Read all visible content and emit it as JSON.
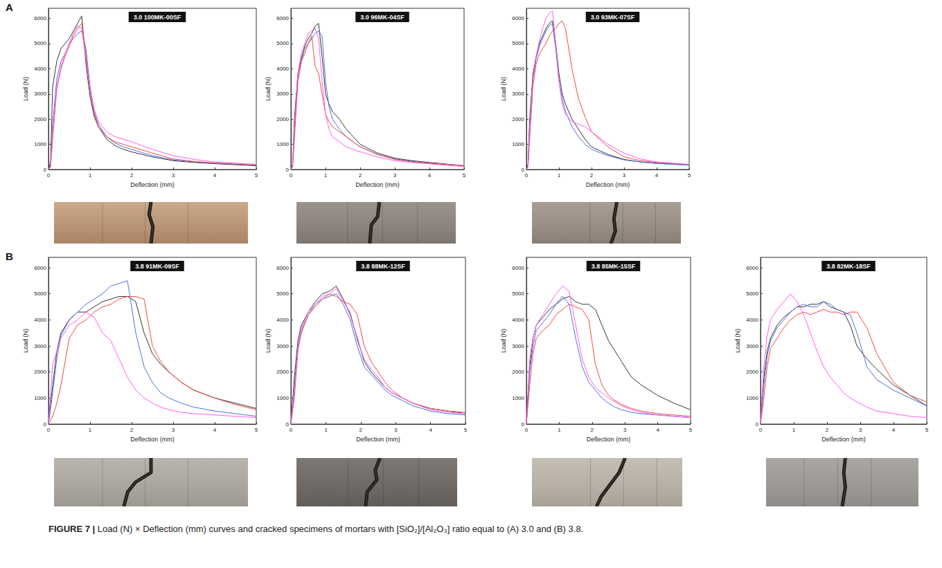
{
  "caption": {
    "label": "FIGURE 7 |",
    "text": "Load (N) × Deflection (mm) curves and cracked specimens of mortars with [SiO₂]/[Al₂O₃] ratio equal to (A) 3.0 and (B) 3.8."
  },
  "chart_data": [
    {
      "type": "line",
      "panel": "A",
      "title": "3.0 100MK-00SF",
      "x_label": "Deflection (mm)",
      "y_label": "Load (N)",
      "xlim": [
        0,
        5
      ],
      "xticks": [
        0,
        1,
        2,
        3,
        4,
        5
      ],
      "ylim": [
        0,
        6400
      ],
      "yticks": [
        0,
        1000,
        2000,
        3000,
        4000,
        5000,
        6000
      ],
      "grid": false,
      "x": [
        0,
        0.05,
        0.1,
        0.2,
        0.3,
        0.4,
        0.5,
        0.6,
        0.7,
        0.8,
        0.9,
        1.0,
        1.1,
        1.2,
        1.4,
        1.6,
        1.8,
        2.0,
        2.5,
        3.0,
        3.5,
        4.0,
        5.0
      ],
      "series": [
        {
          "color": "#333333",
          "values": [
            0,
            300,
            3300,
            4300,
            4800,
            5000,
            5200,
            5500,
            5800,
            6100,
            4200,
            2900,
            2100,
            1700,
            1200,
            950,
            800,
            700,
            500,
            350,
            280,
            230,
            150
          ]
        },
        {
          "color": "#4d6fe0",
          "values": [
            0,
            150,
            1800,
            3600,
            4300,
            4600,
            5000,
            5200,
            5400,
            5500,
            4800,
            3300,
            2300,
            1800,
            1300,
            1050,
            900,
            800,
            550,
            380,
            300,
            250,
            170
          ]
        },
        {
          "color": "#ef4a43",
          "values": [
            0,
            100,
            1200,
            3200,
            4000,
            4500,
            4900,
            5300,
            5600,
            5800,
            4600,
            3100,
            2200,
            1700,
            1300,
            1100,
            1000,
            900,
            650,
            420,
            320,
            260,
            180
          ]
        },
        {
          "color": "#ff5cf0",
          "values": [
            0,
            100,
            1500,
            3300,
            4100,
            4600,
            5000,
            5400,
            5700,
            5600,
            4400,
            3200,
            2400,
            1900,
            1500,
            1300,
            1200,
            1100,
            800,
            550,
            400,
            300,
            200
          ]
        }
      ]
    },
    {
      "type": "line",
      "panel": "A",
      "title": "3.0 96MK-04SF",
      "x_label": "Deflection (mm)",
      "y_label": "Load (N)",
      "xlim": [
        0,
        5
      ],
      "xticks": [
        0,
        1,
        2,
        3,
        4,
        5
      ],
      "ylim": [
        0,
        6400
      ],
      "yticks": [
        0,
        1000,
        2000,
        3000,
        4000,
        5000,
        6000
      ],
      "grid": false,
      "x": [
        0,
        0.05,
        0.1,
        0.2,
        0.3,
        0.4,
        0.5,
        0.6,
        0.7,
        0.8,
        0.9,
        1.0,
        1.1,
        1.2,
        1.4,
        1.6,
        1.8,
        2.0,
        2.5,
        3.0,
        3.5,
        4.0,
        5.0
      ],
      "series": [
        {
          "color": "#333333",
          "values": [
            0,
            200,
            2000,
            3800,
            4400,
            4900,
            5200,
            5400,
            5700,
            5800,
            4500,
            3000,
            2600,
            2300,
            2000,
            1600,
            1300,
            1000,
            650,
            450,
            350,
            280,
            150
          ]
        },
        {
          "color": "#4d6fe0",
          "values": [
            0,
            150,
            1500,
            3500,
            4300,
            4800,
            5000,
            5200,
            5400,
            5500,
            5300,
            3500,
            2500,
            2000,
            1600,
            1300,
            1100,
            900,
            600,
            420,
            320,
            250,
            150
          ]
        },
        {
          "color": "#ef4a43",
          "values": [
            0,
            100,
            1200,
            3500,
            4300,
            4600,
            5000,
            5300,
            4100,
            3800,
            3000,
            2200,
            1900,
            1700,
            1500,
            1300,
            1100,
            900,
            600,
            400,
            300,
            250,
            150
          ]
        },
        {
          "color": "#ff5cf0",
          "values": [
            0,
            150,
            1700,
            3800,
            4600,
            5000,
            5400,
            5500,
            5600,
            5200,
            3500,
            2200,
            1600,
            1300,
            1100,
            900,
            800,
            700,
            500,
            350,
            280,
            220,
            120
          ]
        }
      ]
    },
    {
      "type": "line",
      "panel": "A",
      "title": "3.0 93MK-07SF",
      "x_label": "Deflection (mm)",
      "y_label": "Load (N)",
      "xlim": [
        0,
        5
      ],
      "xticks": [
        0,
        1,
        2,
        3,
        4,
        5
      ],
      "ylim": [
        0,
        6400
      ],
      "yticks": [
        0,
        1000,
        2000,
        3000,
        4000,
        5000,
        6000
      ],
      "grid": false,
      "x": [
        0,
        0.05,
        0.1,
        0.2,
        0.3,
        0.4,
        0.5,
        0.6,
        0.7,
        0.8,
        0.9,
        1.0,
        1.1,
        1.2,
        1.4,
        1.6,
        1.8,
        2.0,
        2.5,
        3.0,
        3.5,
        4.0,
        5.0
      ],
      "series": [
        {
          "color": "#333333",
          "values": [
            0,
            200,
            2000,
            3800,
            4500,
            5000,
            5300,
            5600,
            5800,
            5900,
            5000,
            3800,
            3000,
            2600,
            2000,
            1600,
            1200,
            900,
            600,
            400,
            300,
            250,
            180
          ]
        },
        {
          "color": "#4d6fe0",
          "values": [
            0,
            150,
            1800,
            3600,
            4400,
            4900,
            5200,
            5500,
            5700,
            5800,
            4800,
            3500,
            2800,
            2300,
            1700,
            1300,
            1000,
            800,
            550,
            380,
            300,
            240,
            170
          ]
        },
        {
          "color": "#ef4a43",
          "values": [
            0,
            100,
            1200,
            3300,
            4200,
            4600,
            4800,
            5000,
            5300,
            5500,
            5600,
            5800,
            5900,
            5600,
            4000,
            2800,
            2100,
            1500,
            900,
            500,
            350,
            280,
            200
          ]
        },
        {
          "color": "#ff5cf0",
          "values": [
            0,
            100,
            1500,
            3600,
            4500,
            5100,
            5600,
            6000,
            6200,
            6300,
            5000,
            3500,
            2600,
            2200,
            1900,
            1800,
            1700,
            1500,
            1000,
            650,
            420,
            300,
            200
          ]
        }
      ]
    },
    {
      "type": "line",
      "panel": "B",
      "title": "3.8 91MK-09SF",
      "x_label": "Deflection (mm)",
      "y_label": "Load (N)",
      "xlim": [
        0,
        5
      ],
      "xticks": [
        0,
        1,
        2,
        3,
        4,
        5
      ],
      "ylim": [
        0,
        6400
      ],
      "yticks": [
        0,
        1000,
        2000,
        3000,
        4000,
        5000,
        6000
      ],
      "grid": false,
      "x": [
        0,
        0.1,
        0.2,
        0.3,
        0.5,
        0.7,
        0.9,
        1.1,
        1.3,
        1.5,
        1.7,
        1.9,
        2.1,
        2.3,
        2.5,
        2.7,
        2.9,
        3.2,
        3.5,
        4.0,
        4.5,
        5.0
      ],
      "series": [
        {
          "color": "#333333",
          "values": [
            0,
            1500,
            2800,
            3500,
            4000,
            4300,
            4300,
            4500,
            4700,
            4800,
            4900,
            4900,
            4700,
            3500,
            2700,
            2300,
            2000,
            1600,
            1300,
            1000,
            800,
            600
          ]
        },
        {
          "color": "#4d6fe0",
          "values": [
            0,
            1200,
            2500,
            3400,
            4000,
            4300,
            4600,
            4800,
            5000,
            5300,
            5400,
            5500,
            3500,
            2200,
            1600,
            1200,
            1000,
            800,
            650,
            500,
            400,
            300
          ]
        },
        {
          "color": "#ef4a43",
          "values": [
            0,
            300,
            800,
            1500,
            3300,
            3800,
            4000,
            4300,
            4500,
            4600,
            4800,
            4900,
            4900,
            4800,
            3000,
            2400,
            2000,
            1600,
            1300,
            1000,
            750,
            550
          ]
        },
        {
          "color": "#ff5cf0",
          "values": [
            0,
            2300,
            2800,
            3300,
            3800,
            4000,
            4300,
            4100,
            3500,
            3200,
            2500,
            1800,
            1300,
            1000,
            800,
            650,
            550,
            450,
            400,
            350,
            300,
            250
          ]
        }
      ]
    },
    {
      "type": "line",
      "panel": "B",
      "title": "3.8 88MK-12SF",
      "x_label": "Deflection (mm)",
      "y_label": "Load (N)",
      "xlim": [
        0,
        5
      ],
      "xticks": [
        0,
        1,
        2,
        3,
        4,
        5
      ],
      "ylim": [
        0,
        6400
      ],
      "yticks": [
        0,
        1000,
        2000,
        3000,
        4000,
        5000,
        6000
      ],
      "grid": false,
      "x": [
        0,
        0.1,
        0.2,
        0.3,
        0.5,
        0.7,
        0.9,
        1.1,
        1.3,
        1.5,
        1.7,
        1.9,
        2.1,
        2.3,
        2.5,
        2.7,
        2.9,
        3.2,
        3.5,
        4.0,
        4.5,
        5.0
      ],
      "series": [
        {
          "color": "#333333",
          "values": [
            0,
            1800,
            3200,
            3800,
            4300,
            4700,
            5000,
            5100,
            5300,
            4800,
            4200,
            3300,
            2400,
            2000,
            1700,
            1400,
            1200,
            1000,
            800,
            600,
            500,
            400
          ]
        },
        {
          "color": "#4d6fe0",
          "values": [
            0,
            1500,
            3000,
            3600,
            4200,
            4600,
            4800,
            4900,
            5000,
            4600,
            4000,
            3000,
            2200,
            1900,
            1600,
            1300,
            1100,
            900,
            700,
            500,
            400,
            350
          ]
        },
        {
          "color": "#ef4a43",
          "values": [
            0,
            1000,
            2800,
            3500,
            4200,
            4500,
            4800,
            5000,
            4900,
            4700,
            4600,
            4200,
            3000,
            2400,
            2000,
            1600,
            1300,
            1000,
            800,
            600,
            500,
            450
          ]
        },
        {
          "color": "#ff5cf0",
          "values": [
            0,
            1300,
            2900,
            3700,
            4300,
            4600,
            4900,
            5000,
            5200,
            4700,
            4300,
            3200,
            2500,
            2100,
            1800,
            1400,
            1200,
            1000,
            800,
            550,
            450,
            400
          ]
        }
      ]
    },
    {
      "type": "line",
      "panel": "B",
      "title": "3.8 85MK-15SF",
      "x_label": "Deflection (mm)",
      "y_label": "Load (N)",
      "xlim": [
        0,
        5
      ],
      "xticks": [
        0,
        1,
        2,
        3,
        4,
        5
      ],
      "ylim": [
        0,
        6400
      ],
      "yticks": [
        0,
        1000,
        2000,
        3000,
        4000,
        5000,
        6000
      ],
      "grid": false,
      "x": [
        0,
        0.1,
        0.2,
        0.3,
        0.5,
        0.7,
        0.9,
        1.1,
        1.3,
        1.5,
        1.7,
        1.9,
        2.1,
        2.3,
        2.5,
        2.7,
        2.9,
        3.2,
        3.5,
        4.0,
        4.5,
        5.0
      ],
      "series": [
        {
          "color": "#333333",
          "values": [
            0,
            2200,
            3300,
            3800,
            4100,
            4400,
            4600,
            4800,
            4900,
            4700,
            4600,
            4600,
            4400,
            3800,
            3200,
            2800,
            2400,
            1800,
            1500,
            1100,
            800,
            550
          ]
        },
        {
          "color": "#4d6fe0",
          "values": [
            0,
            2000,
            3000,
            3600,
            3900,
            4200,
            4600,
            4900,
            4600,
            3300,
            2200,
            1600,
            1300,
            1000,
            800,
            650,
            550,
            450,
            400,
            350,
            300,
            250
          ]
        },
        {
          "color": "#ef4a43",
          "values": [
            0,
            1500,
            2700,
            3300,
            3600,
            3800,
            4200,
            4400,
            4600,
            4500,
            4400,
            4000,
            2300,
            1500,
            1100,
            900,
            750,
            600,
            500,
            400,
            350,
            300
          ]
        },
        {
          "color": "#ff5cf0",
          "values": [
            0,
            2500,
            3300,
            3800,
            4200,
            4600,
            5000,
            5300,
            5100,
            3800,
            2500,
            1800,
            1400,
            1200,
            1000,
            850,
            700,
            550,
            450,
            350,
            300,
            250
          ]
        }
      ]
    },
    {
      "type": "line",
      "panel": "B",
      "title": "3.8 82MK-18SF",
      "x_label": "Deflection (mm)",
      "y_label": "Load (N)",
      "xlim": [
        0,
        5
      ],
      "xticks": [
        0,
        1,
        2,
        3,
        4,
        5
      ],
      "ylim": [
        0,
        6400
      ],
      "yticks": [
        0,
        1000,
        2000,
        3000,
        4000,
        5000,
        6000
      ],
      "grid": false,
      "x": [
        0,
        0.1,
        0.2,
        0.3,
        0.5,
        0.7,
        0.9,
        1.1,
        1.3,
        1.5,
        1.7,
        1.9,
        2.1,
        2.3,
        2.5,
        2.7,
        2.9,
        3.2,
        3.5,
        4.0,
        4.5,
        5.0
      ],
      "series": [
        {
          "color": "#333333",
          "values": [
            0,
            1800,
            2800,
            3300,
            3800,
            4100,
            4300,
            4500,
            4500,
            4600,
            4600,
            4700,
            4500,
            4400,
            4300,
            3800,
            3000,
            2500,
            2100,
            1500,
            1100,
            700
          ]
        },
        {
          "color": "#4d6fe0",
          "values": [
            0,
            1500,
            2600,
            3200,
            3700,
            4000,
            4300,
            4500,
            4600,
            4500,
            4500,
            4700,
            4600,
            4400,
            4300,
            4200,
            3500,
            2200,
            1700,
            1300,
            1000,
            700
          ]
        },
        {
          "color": "#ef4a43",
          "values": [
            0,
            1000,
            2200,
            2900,
            3300,
            3700,
            4000,
            4200,
            4300,
            4200,
            4300,
            4400,
            4300,
            4300,
            4200,
            4300,
            4300,
            3700,
            2700,
            1600,
            1100,
            850
          ]
        },
        {
          "color": "#ff5cf0",
          "values": [
            0,
            2200,
            3400,
            4000,
            4400,
            4700,
            5000,
            4700,
            4200,
            3500,
            2800,
            2200,
            1800,
            1500,
            1200,
            1000,
            850,
            650,
            500,
            400,
            300,
            250
          ]
        }
      ]
    }
  ]
}
